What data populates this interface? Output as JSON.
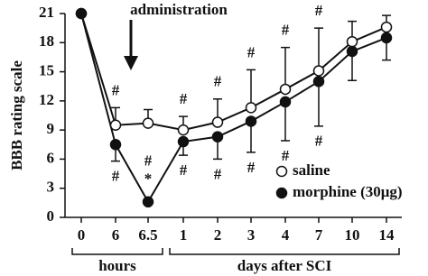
{
  "chart_data": {
    "type": "line",
    "ylabel": "BBB rating scale",
    "annotation": "administration",
    "x_groups": [
      "hours",
      "days after SCI"
    ],
    "categories": [
      "0",
      "6",
      "6.5",
      "1",
      "2",
      "3",
      "4",
      "7",
      "10",
      "14"
    ],
    "ylim": [
      0,
      21
    ],
    "yticks": [
      0,
      3,
      6,
      9,
      12,
      15,
      18,
      21
    ],
    "legend": "bottom-right",
    "series": [
      {
        "name": "saline",
        "color": "#ffffff",
        "error_direction": "up",
        "values": [
          21,
          9.5,
          9.7,
          9.0,
          9.8,
          11.3,
          13.2,
          15.1,
          18.1,
          19.6
        ],
        "errors": [
          0,
          1.8,
          1.4,
          1.4,
          2.4,
          3.9,
          4.3,
          4.4,
          2.1,
          1.2
        ],
        "markers": [
          null,
          "#",
          null,
          "#",
          "#",
          "#",
          "#",
          "#",
          null,
          null
        ],
        "stars": [
          null,
          null,
          null,
          null,
          null,
          null,
          null,
          null,
          null,
          null
        ]
      },
      {
        "name": "morphine (30μg)",
        "color": "#111111",
        "error_direction": "down",
        "values": [
          21,
          7.5,
          1.6,
          7.8,
          8.3,
          9.9,
          11.9,
          14.0,
          17.1,
          18.5
        ],
        "errors": [
          0,
          1.7,
          0,
          1.4,
          2.3,
          3.2,
          4.0,
          4.6,
          3.0,
          2.3
        ],
        "markers": [
          null,
          "#",
          "#",
          "#",
          "#",
          "#",
          "#",
          "#",
          null,
          null
        ],
        "stars": [
          null,
          null,
          "*",
          null,
          null,
          null,
          null,
          null,
          null,
          null
        ]
      }
    ]
  }
}
